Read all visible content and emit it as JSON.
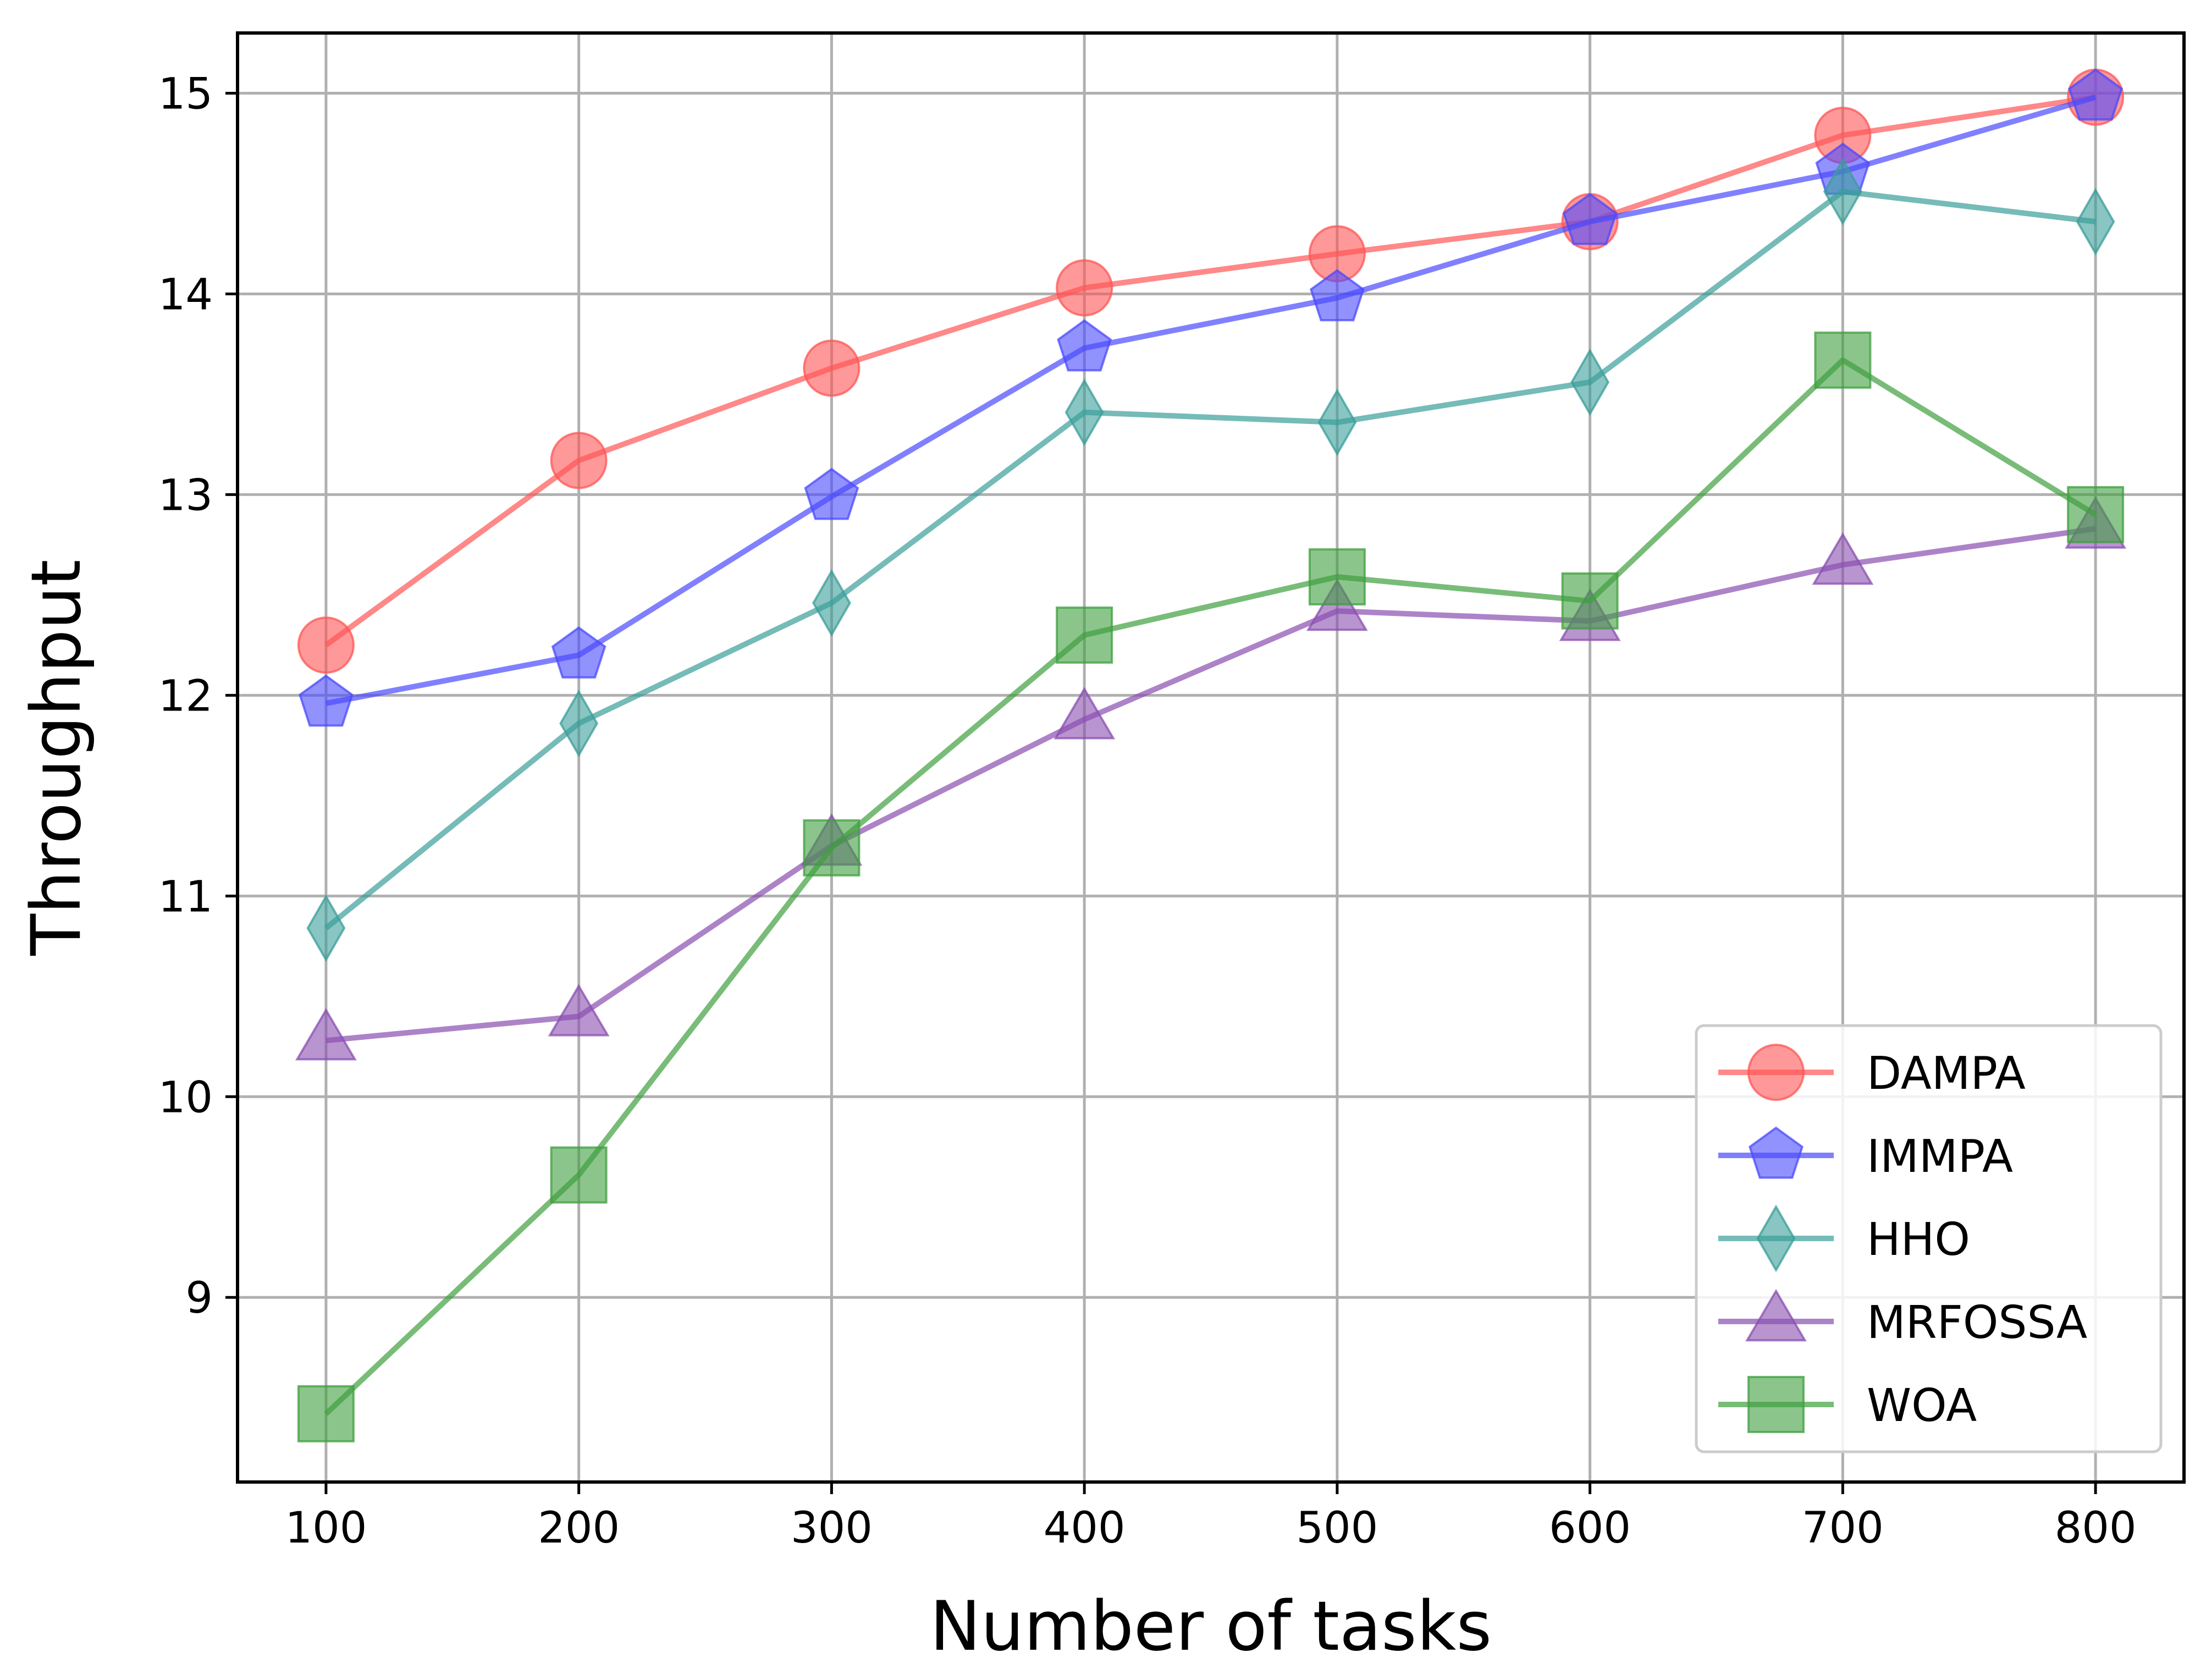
{
  "chart_data": {
    "type": "line",
    "title": "",
    "xlabel": "Number of tasks",
    "ylabel": "Throughput",
    "x": [
      100,
      200,
      300,
      400,
      500,
      600,
      700,
      800
    ],
    "xticks": [
      "100",
      "200",
      "300",
      "400",
      "500",
      "600",
      "700",
      "800"
    ],
    "yticks": [
      "9",
      "10",
      "11",
      "12",
      "13",
      "14",
      "15"
    ],
    "xlim": [
      65,
      835
    ],
    "ylim": [
      8.08,
      15.3
    ],
    "grid": true,
    "legend_position": "lower-right",
    "series": [
      {
        "name": "DAMPA",
        "color": "#ff5555",
        "marker": "circle",
        "values": [
          12.25,
          13.17,
          13.63,
          14.03,
          14.2,
          14.36,
          14.79,
          14.98
        ]
      },
      {
        "name": "IMMPA",
        "color": "#4a4aff",
        "marker": "pentagon",
        "values": [
          11.96,
          12.2,
          12.99,
          13.73,
          13.98,
          14.36,
          14.61,
          14.98
        ]
      },
      {
        "name": "HHO",
        "color": "#3a9e9a",
        "marker": "diamond",
        "values": [
          10.84,
          11.86,
          12.46,
          13.41,
          13.36,
          13.56,
          14.51,
          14.36
        ]
      },
      {
        "name": "MRFOSSA",
        "color": "#8a4fb0",
        "marker": "triangle",
        "values": [
          10.28,
          10.4,
          11.25,
          11.88,
          12.42,
          12.37,
          12.65,
          12.83
        ]
      },
      {
        "name": "WOA",
        "color": "#3f9f3f",
        "marker": "square",
        "values": [
          8.42,
          9.61,
          11.24,
          12.3,
          12.59,
          12.47,
          13.67,
          12.9
        ]
      }
    ]
  }
}
